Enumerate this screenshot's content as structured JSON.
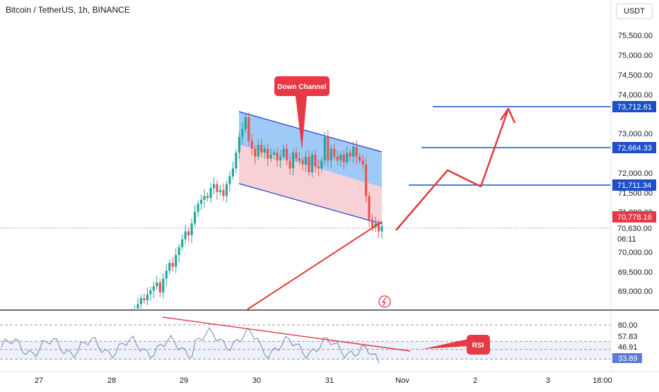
{
  "header": {
    "symbol_title": "Bitcoin / TetherUS, 1h, BINANCE",
    "currency_button": "USDT"
  },
  "price_axis": {
    "ticks": [
      "75,500.00",
      "75,000.00",
      "74,500.00",
      "74,000.00",
      "73,000.00",
      "72,000.00",
      "71,500.00",
      "70,000.00",
      "69,500.00",
      "69,000.00"
    ],
    "labels": {
      "level_1": "73,712.61",
      "level_2": "72,664.33",
      "level_3": "71,711.34",
      "red": "70,778.16",
      "current": "70,630.00",
      "countdown": "06:11"
    }
  },
  "rsi_axis": {
    "ticks": [
      "80.00",
      "57.83",
      "46.91"
    ],
    "value": "33.89"
  },
  "time_axis": {
    "labels": [
      "27",
      "28",
      "29",
      "30",
      "31",
      "Nov",
      "2",
      "3",
      "18:00"
    ]
  },
  "annotations": {
    "channel_label": "Down Channel",
    "rsi_label": "RSI"
  },
  "colors": {
    "candle_up": "#26a69a",
    "candle_down": "#ef5350",
    "level_line": "#1e4fc9",
    "channel_upper_fill": "#7fb8f5",
    "channel_lower_fill": "#f5c6cc",
    "annotation_red": "#e53946",
    "rsi_line": "#7e8fb8"
  },
  "chart_data": {
    "type": "candlestick",
    "symbol": "Bitcoin / TetherUS",
    "interval": "1h",
    "exchange": "BINANCE",
    "horizontal_levels": [
      73712.61,
      72664.33,
      71711.34
    ],
    "current_price": 70630.0,
    "red_price_label": 70778.16,
    "price_axis_visible_range": [
      68500,
      76000
    ],
    "candles_approx_close": [
      68400,
      68500,
      68650,
      68800,
      68750,
      68900,
      69000,
      69100,
      69200,
      68950,
      69300,
      69500,
      69700,
      69600,
      69900,
      70100,
      70300,
      70500,
      70400,
      70700,
      71000,
      71200,
      71300,
      71400,
      71350,
      71600,
      71700,
      71500,
      71550,
      71400,
      71700,
      71900,
      72100,
      72500,
      72900,
      73100,
      73400,
      72800,
      72600,
      72400,
      72700,
      72500,
      72600,
      72350,
      72450,
      72500,
      72300,
      72400,
      72600,
      72300,
      72100,
      72500,
      72350,
      72300,
      72200,
      72400,
      72000,
      72450,
      72150,
      72100,
      72300,
      72900,
      72300,
      72600,
      72400,
      72300,
      72450,
      72250,
      72500,
      72400,
      72650,
      72400,
      72300,
      72200,
      71400,
      70800,
      70600,
      70700,
      70500,
      70630
    ],
    "rsi": {
      "last_value": 33.89,
      "reference_levels": [
        80.0,
        57.83,
        46.91
      ]
    }
  }
}
